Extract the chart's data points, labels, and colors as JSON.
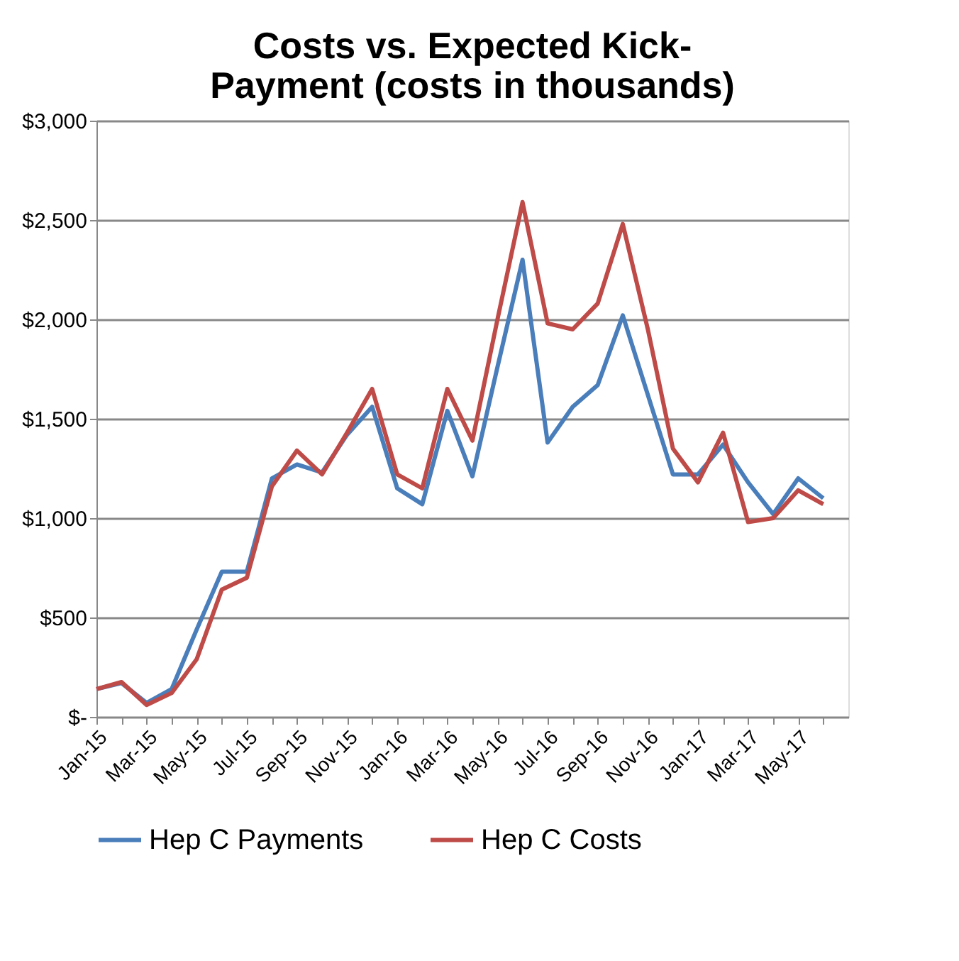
{
  "chart_data": {
    "type": "line",
    "title": "Costs vs. Expected Kick-\nPayment (costs in thousands)",
    "categories": [
      "Jan-15",
      null,
      "Mar-15",
      null,
      "May-15",
      null,
      "Jul-15",
      null,
      "Sep-15",
      null,
      "Nov-15",
      null,
      "Jan-16",
      null,
      "Mar-16",
      null,
      "May-16",
      null,
      "Jul-16",
      null,
      "Sep-16",
      null,
      "Nov-16",
      null,
      "Jan-17",
      null,
      "Mar-17",
      null,
      "May-17",
      null
    ],
    "series": [
      {
        "name": "Hep C Payments",
        "color": "#4a7ebb",
        "values": [
          140,
          170,
          70,
          140,
          440,
          730,
          730,
          1200,
          1270,
          1230,
          1420,
          1560,
          1150,
          1070,
          1540,
          1210,
          1760,
          2300,
          1380,
          1560,
          1670,
          2020,
          1620,
          1220,
          1220,
          1370,
          1180,
          1020,
          1200,
          1100
        ]
      },
      {
        "name": "Hep C Costs",
        "color": "#be4b48",
        "values": [
          140,
          175,
          60,
          120,
          290,
          640,
          700,
          1160,
          1340,
          1220,
          1430,
          1650,
          1220,
          1150,
          1650,
          1390,
          2000,
          2590,
          1980,
          1950,
          2080,
          2480,
          1950,
          1350,
          1180,
          1430,
          980,
          1000,
          1140,
          1070
        ]
      }
    ],
    "ylim": [
      0,
      3000
    ],
    "yticks": [
      {
        "value": 0,
        "label": "$-"
      },
      {
        "value": 500,
        "label": "$500"
      },
      {
        "value": 1000,
        "label": "$1,000"
      },
      {
        "value": 1500,
        "label": "$1,500"
      },
      {
        "value": 2000,
        "label": "$2,000"
      },
      {
        "value": 2500,
        "label": "$2,500"
      },
      {
        "value": 3000,
        "label": "$3,000"
      }
    ],
    "grid": "y",
    "legend": "bottom",
    "marker": "none",
    "line_style": "solid"
  }
}
